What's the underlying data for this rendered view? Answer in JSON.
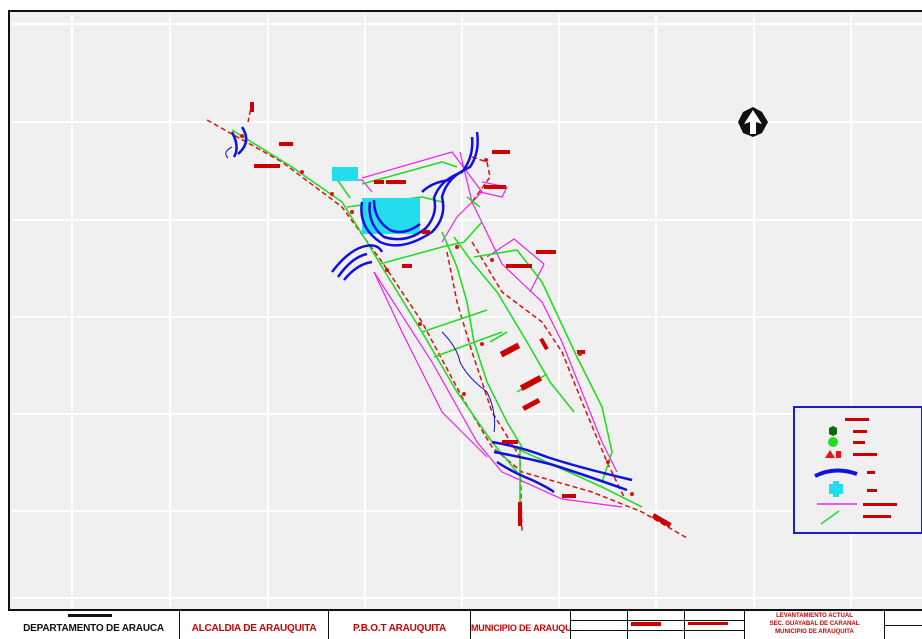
{
  "title_block": {
    "department": "DEPARTAMENTO DE ARAUCA",
    "mayor_office": "ALCALDIA DE ARAUQUITA",
    "plan": "P.B.O.T ARAUQUITA",
    "municipality": "MUNICIPIO DE ARAUQUITA",
    "plan_title_line1": "LEVANTAMIENTO ACTUAL",
    "plan_title_line2": "SEC. GUAYABAL DE CARANAL",
    "plan_title_line3": "MUNICIPIO DE ARAUQUITA"
  },
  "colors": {
    "background": "#f0f0f0",
    "grid": "#ffffff",
    "river": "#1010e0",
    "road": "#22dd22",
    "boundary": "#ee22ee",
    "labels": "#cc0000",
    "water_body": "#22ddee",
    "legend_border": "#1a1ad8"
  },
  "icons": {
    "north_arrow": "north-arrow-icon"
  }
}
